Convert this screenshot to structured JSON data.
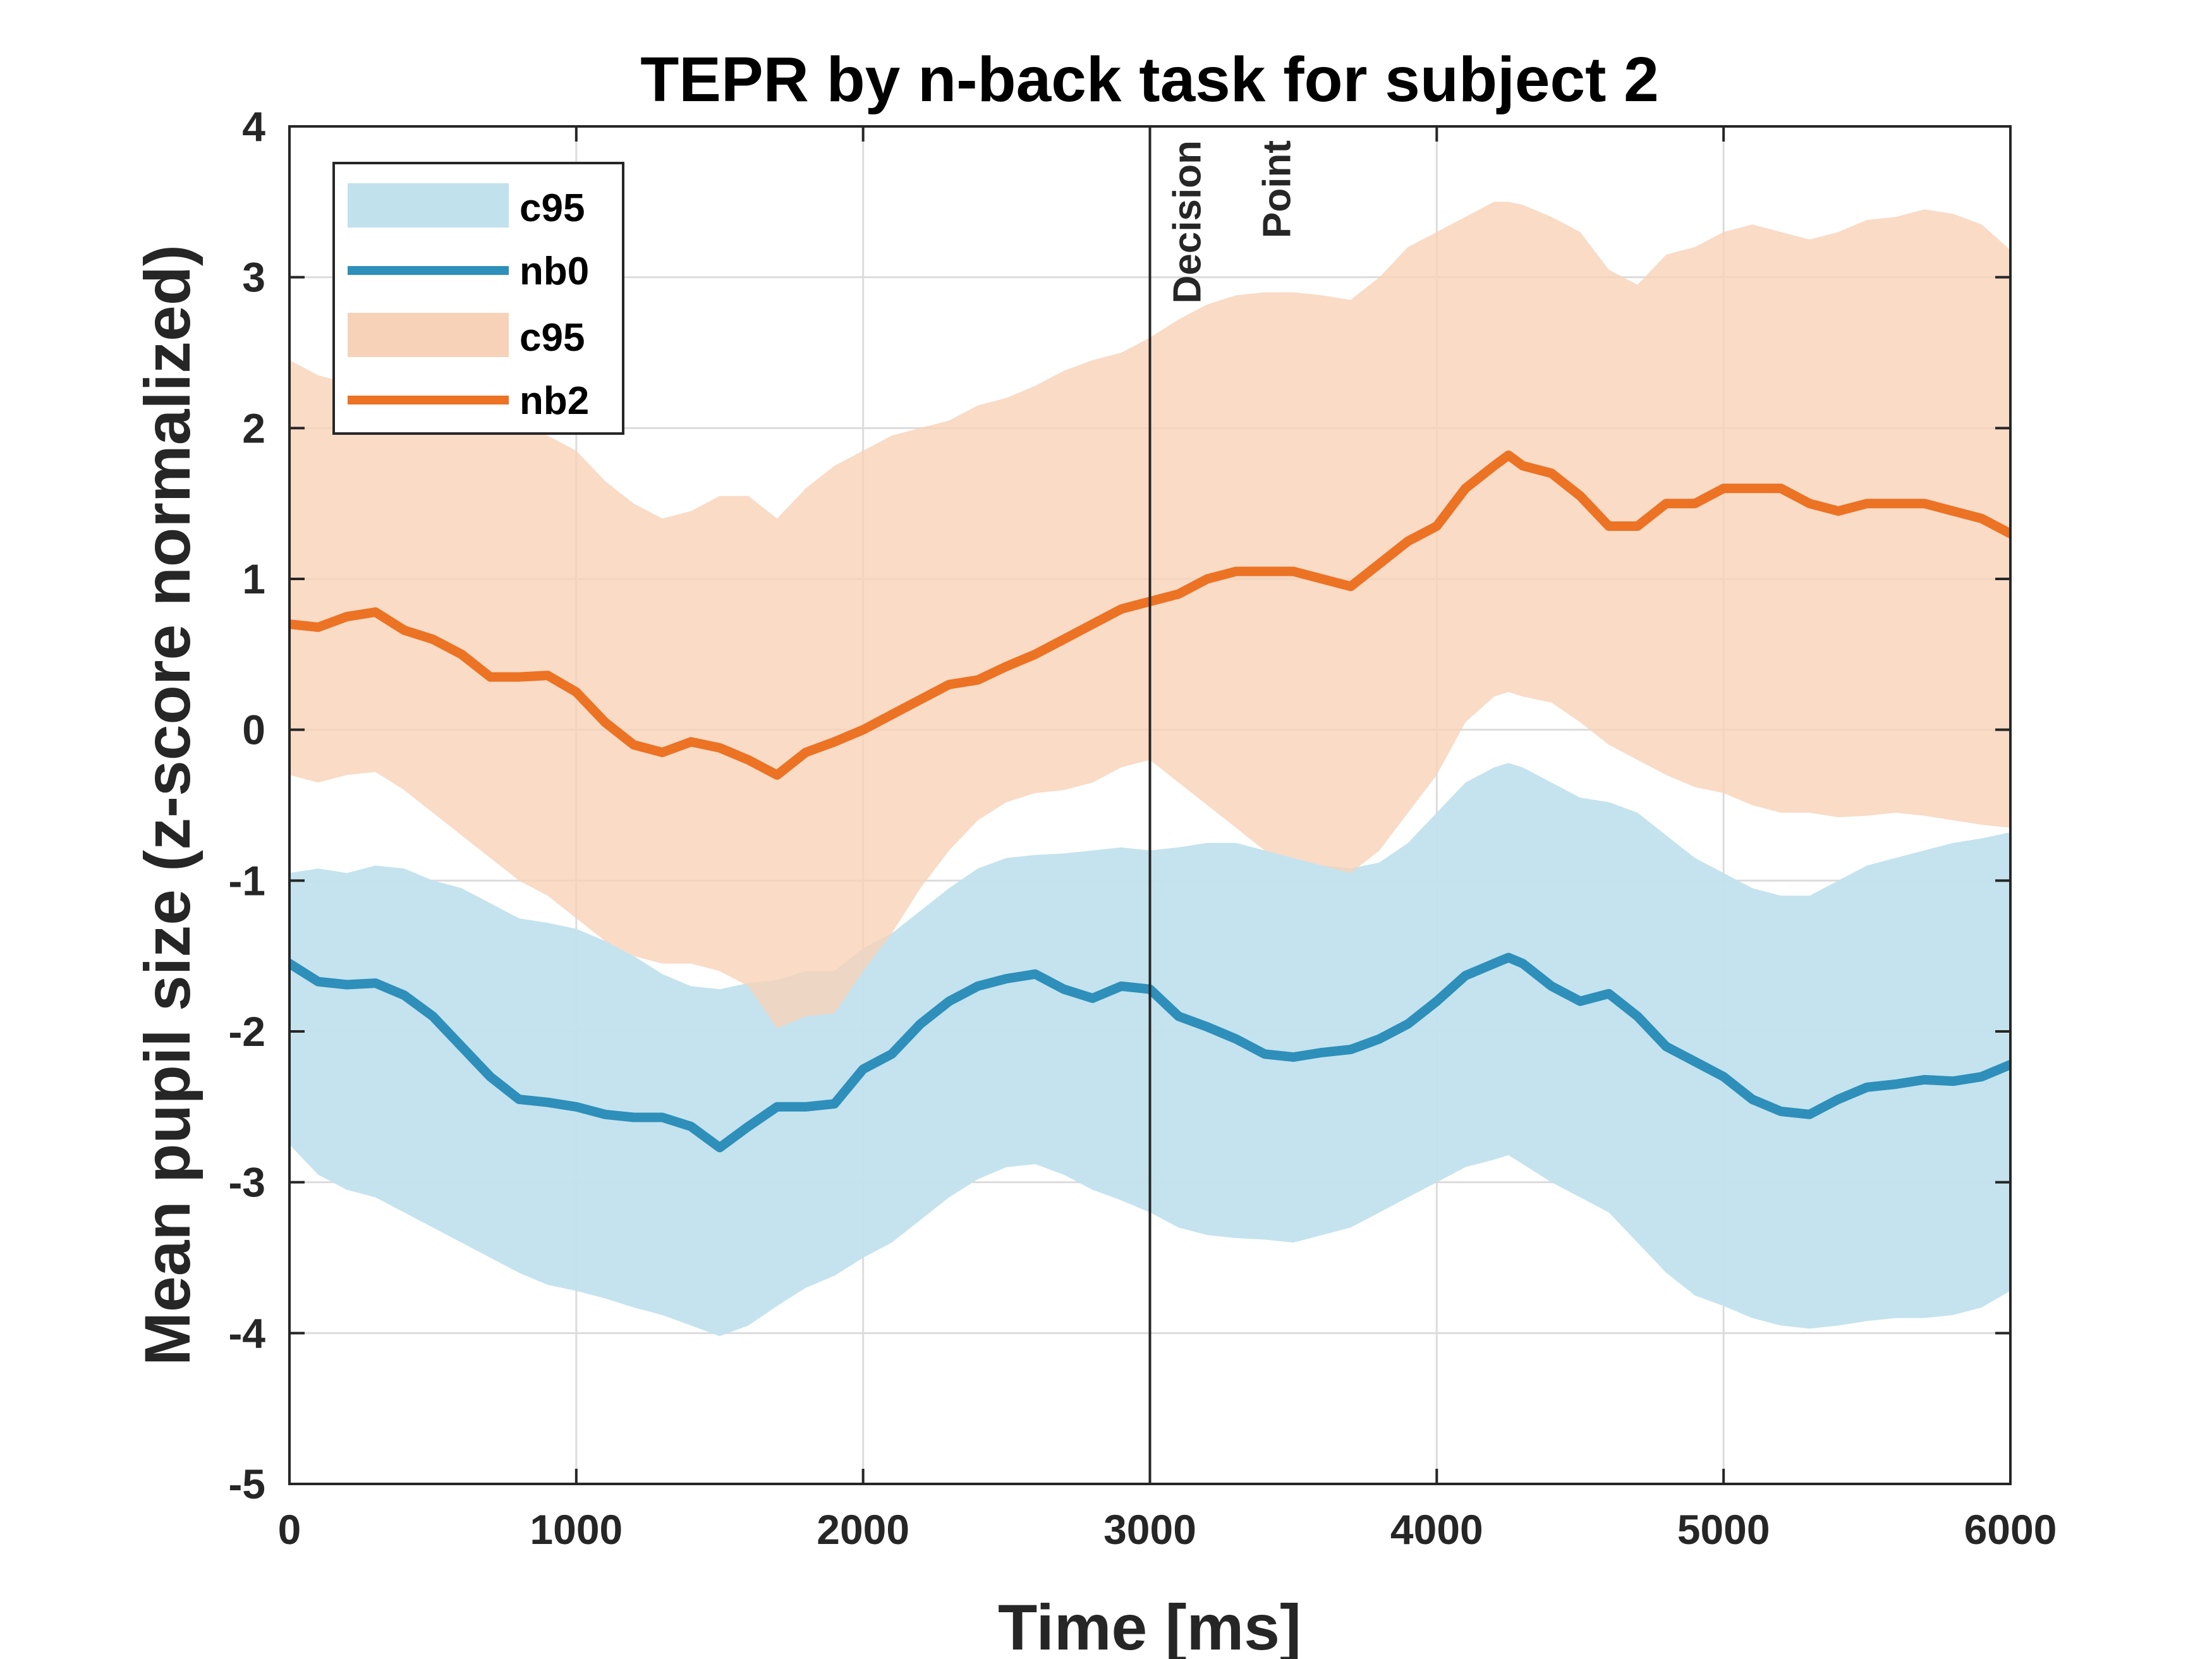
{
  "chart_data": {
    "type": "line",
    "title": "TEPR by n-back task for subject 2",
    "xlabel": "Time [ms]",
    "ylabel": "Mean pupil size (z-score normalized)",
    "xlim": [
      0,
      6000
    ],
    "ylim": [
      -5,
      4
    ],
    "xticks": [
      0,
      1000,
      2000,
      3000,
      4000,
      5000,
      6000
    ],
    "yticks": [
      4,
      3,
      2,
      1,
      0,
      -1,
      -2,
      -3,
      -4,
      -5
    ],
    "grid": true,
    "legend_position": "top-left",
    "annotation": {
      "text_line1": "Decision",
      "text_line2": "Point",
      "x": 3000
    },
    "colors": {
      "nb0_line": "#2e8fba",
      "nb0_band": "#c1e1ed",
      "nb2_line": "#ec7224",
      "nb2_band": "#f8d2b8"
    },
    "series": [
      {
        "name": "nb0",
        "band_name": "c95",
        "x": [
          0,
          100,
          200,
          300,
          400,
          500,
          600,
          700,
          800,
          900,
          1000,
          1100,
          1200,
          1300,
          1400,
          1500,
          1600,
          1700,
          1800,
          1900,
          2000,
          2100,
          2200,
          2300,
          2400,
          2500,
          2600,
          2700,
          2800,
          2900,
          3000,
          3100,
          3200,
          3300,
          3400,
          3500,
          3600,
          3700,
          3800,
          3900,
          4000,
          4100,
          4200,
          4250,
          4300,
          4400,
          4500,
          4600,
          4700,
          4800,
          4900,
          5000,
          5100,
          5200,
          5300,
          5400,
          5500,
          5600,
          5700,
          5800,
          5900,
          6000
        ],
        "y": [
          -1.55,
          -1.67,
          -1.69,
          -1.68,
          -1.76,
          -1.9,
          -2.1,
          -2.3,
          -2.45,
          -2.47,
          -2.5,
          -2.55,
          -2.57,
          -2.57,
          -2.63,
          -2.77,
          -2.63,
          -2.5,
          -2.5,
          -2.48,
          -2.25,
          -2.15,
          -1.95,
          -1.8,
          -1.7,
          -1.65,
          -1.62,
          -1.72,
          -1.78,
          -1.7,
          -1.72,
          -1.9,
          -1.97,
          -2.05,
          -2.15,
          -2.17,
          -2.14,
          -2.12,
          -2.05,
          -1.95,
          -1.8,
          -1.63,
          -1.55,
          -1.51,
          -1.55,
          -1.7,
          -1.8,
          -1.75,
          -1.9,
          -2.1,
          -2.2,
          -2.3,
          -2.45,
          -2.53,
          -2.55,
          -2.45,
          -2.37,
          -2.35,
          -2.32,
          -2.33,
          -2.3,
          -2.22
        ],
        "lower": [
          -2.75,
          -2.95,
          -3.05,
          -3.1,
          -3.2,
          -3.3,
          -3.4,
          -3.5,
          -3.6,
          -3.68,
          -3.72,
          -3.77,
          -3.83,
          -3.88,
          -3.95,
          -4.02,
          -3.95,
          -3.82,
          -3.7,
          -3.62,
          -3.5,
          -3.4,
          -3.25,
          -3.1,
          -2.98,
          -2.9,
          -2.88,
          -2.95,
          -3.05,
          -3.12,
          -3.2,
          -3.3,
          -3.35,
          -3.37,
          -3.38,
          -3.4,
          -3.35,
          -3.3,
          -3.2,
          -3.1,
          -3.0,
          -2.9,
          -2.85,
          -2.82,
          -2.88,
          -3.0,
          -3.1,
          -3.2,
          -3.4,
          -3.6,
          -3.75,
          -3.82,
          -3.9,
          -3.95,
          -3.97,
          -3.95,
          -3.92,
          -3.9,
          -3.9,
          -3.88,
          -3.83,
          -3.72
        ],
        "upper": [
          -0.95,
          -0.92,
          -0.95,
          -0.9,
          -0.92,
          -1.0,
          -1.05,
          -1.15,
          -1.25,
          -1.28,
          -1.32,
          -1.4,
          -1.5,
          -1.62,
          -1.7,
          -1.72,
          -1.68,
          -1.66,
          -1.6,
          -1.6,
          -1.45,
          -1.35,
          -1.2,
          -1.05,
          -0.92,
          -0.85,
          -0.83,
          -0.82,
          -0.8,
          -0.78,
          -0.8,
          -0.78,
          -0.75,
          -0.75,
          -0.8,
          -0.85,
          -0.9,
          -0.92,
          -0.88,
          -0.75,
          -0.55,
          -0.35,
          -0.25,
          -0.22,
          -0.25,
          -0.35,
          -0.45,
          -0.48,
          -0.55,
          -0.7,
          -0.85,
          -0.95,
          -1.05,
          -1.1,
          -1.1,
          -1.0,
          -0.9,
          -0.85,
          -0.8,
          -0.75,
          -0.72,
          -0.68
        ]
      },
      {
        "name": "nb2",
        "band_name": "c95",
        "x": [
          0,
          100,
          200,
          300,
          400,
          500,
          600,
          700,
          800,
          900,
          1000,
          1100,
          1200,
          1300,
          1400,
          1500,
          1600,
          1700,
          1800,
          1900,
          2000,
          2100,
          2200,
          2300,
          2400,
          2500,
          2600,
          2700,
          2800,
          2900,
          3000,
          3100,
          3200,
          3300,
          3400,
          3500,
          3600,
          3700,
          3800,
          3900,
          4000,
          4100,
          4200,
          4250,
          4300,
          4400,
          4500,
          4600,
          4700,
          4800,
          4900,
          5000,
          5100,
          5200,
          5300,
          5400,
          5500,
          5600,
          5700,
          5800,
          5900,
          6000
        ],
        "y": [
          0.7,
          0.68,
          0.75,
          0.78,
          0.66,
          0.6,
          0.5,
          0.35,
          0.35,
          0.36,
          0.25,
          0.05,
          -0.1,
          -0.15,
          -0.08,
          -0.12,
          -0.2,
          -0.3,
          -0.15,
          -0.08,
          0.0,
          0.1,
          0.2,
          0.3,
          0.33,
          0.42,
          0.5,
          0.6,
          0.7,
          0.8,
          0.85,
          0.9,
          1.0,
          1.05,
          1.05,
          1.05,
          1.0,
          0.95,
          1.1,
          1.25,
          1.35,
          1.6,
          1.75,
          1.82,
          1.75,
          1.7,
          1.55,
          1.35,
          1.35,
          1.5,
          1.5,
          1.6,
          1.6,
          1.6,
          1.5,
          1.45,
          1.5,
          1.5,
          1.5,
          1.45,
          1.4,
          1.3
        ],
        "lower": [
          -0.3,
          -0.35,
          -0.3,
          -0.28,
          -0.4,
          -0.55,
          -0.7,
          -0.85,
          -1.0,
          -1.1,
          -1.25,
          -1.4,
          -1.5,
          -1.55,
          -1.55,
          -1.6,
          -1.7,
          -1.98,
          -1.9,
          -1.88,
          -1.6,
          -1.35,
          -1.05,
          -0.8,
          -0.6,
          -0.48,
          -0.42,
          -0.4,
          -0.35,
          -0.25,
          -0.2,
          -0.35,
          -0.5,
          -0.65,
          -0.8,
          -0.85,
          -0.9,
          -0.95,
          -0.8,
          -0.55,
          -0.3,
          0.05,
          0.22,
          0.25,
          0.22,
          0.18,
          0.05,
          -0.1,
          -0.2,
          -0.3,
          -0.38,
          -0.42,
          -0.5,
          -0.55,
          -0.55,
          -0.58,
          -0.57,
          -0.55,
          -0.57,
          -0.6,
          -0.63,
          -0.65
        ],
        "upper": [
          2.45,
          2.35,
          2.3,
          2.28,
          2.25,
          2.2,
          2.15,
          2.1,
          2.05,
          1.95,
          1.85,
          1.65,
          1.5,
          1.4,
          1.45,
          1.55,
          1.55,
          1.4,
          1.6,
          1.75,
          1.85,
          1.95,
          2.0,
          2.05,
          2.15,
          2.2,
          2.28,
          2.38,
          2.45,
          2.5,
          2.6,
          2.72,
          2.82,
          2.88,
          2.9,
          2.9,
          2.88,
          2.85,
          3.0,
          3.2,
          3.3,
          3.4,
          3.5,
          3.5,
          3.48,
          3.4,
          3.3,
          3.05,
          2.95,
          3.15,
          3.2,
          3.3,
          3.35,
          3.3,
          3.25,
          3.3,
          3.38,
          3.4,
          3.45,
          3.42,
          3.35,
          3.18
        ]
      }
    ]
  }
}
